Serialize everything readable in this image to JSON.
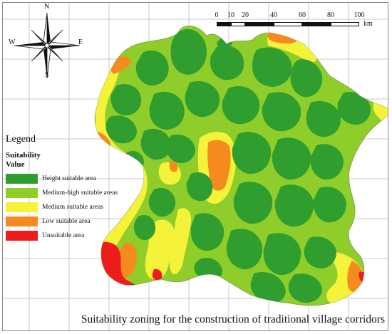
{
  "legend": {
    "title": "Legend",
    "heading": "Suitability",
    "subheading": "Value",
    "items": [
      {
        "label": "Height suitable area",
        "color": "#2f9e2f"
      },
      {
        "label": "Medium-high suitable areas",
        "color": "#8fce2a"
      },
      {
        "label": "Medium suitable areas",
        "color": "#f5f23a"
      },
      {
        "label": "Low suitable area",
        "color": "#f58a1f"
      },
      {
        "label": "Unsuitable area",
        "color": "#ee1c1c"
      }
    ]
  },
  "north_arrow": {
    "n": "N",
    "s": "S",
    "e": "E",
    "w": "W"
  },
  "scale_bar": {
    "ticks": [
      "0",
      "10",
      "20",
      "40",
      "60",
      "80",
      "100"
    ],
    "unit": "km"
  },
  "caption": "Suitability zoning for the construction of traditional village corridors",
  "colors": {
    "grid": "#c8c8c8",
    "high": "#2f9e2f",
    "medium_high": "#8fce2a",
    "medium": "#f5f23a",
    "low": "#f58a1f",
    "unsuitable": "#ee1c1c"
  }
}
